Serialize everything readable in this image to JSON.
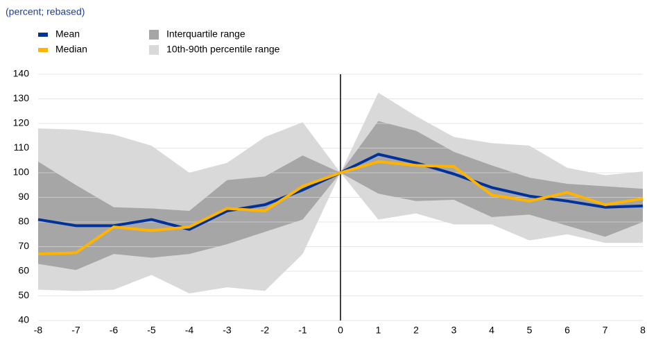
{
  "chart_data": {
    "type": "line",
    "subtitle": "(percent; rebased)",
    "x": [
      -8,
      -7,
      -6,
      -5,
      -4,
      -3,
      -2,
      -1,
      0,
      1,
      2,
      3,
      4,
      5,
      6,
      7,
      8
    ],
    "xlim": [
      -8,
      8
    ],
    "xticks": [
      -8,
      -7,
      -6,
      -5,
      -4,
      -3,
      -2,
      -1,
      0,
      1,
      2,
      3,
      4,
      5,
      6,
      7,
      8
    ],
    "ylim": [
      40,
      140
    ],
    "yticks": [
      40,
      50,
      60,
      70,
      80,
      90,
      100,
      110,
      120,
      130,
      140
    ],
    "grid": true,
    "vline_x": 0,
    "bands": [
      {
        "name": "10th-90th percentile range",
        "color": "#d9d9d9",
        "upper": [
          118,
          117.5,
          115.5,
          111,
          100,
          104,
          114.5,
          120.5,
          100,
          132.5,
          123,
          114.5,
          112,
          111,
          102,
          99,
          100.5
        ],
        "lower": [
          52.5,
          52,
          52.5,
          58.5,
          51,
          53.5,
          52,
          67,
          100,
          81,
          83.5,
          79,
          79,
          72.5,
          75,
          71.5,
          71.5
        ]
      },
      {
        "name": "Interquartile range",
        "color": "#a6a6a6",
        "upper": [
          104.5,
          95,
          86,
          85.5,
          84.5,
          97,
          98.5,
          107,
          100,
          121,
          117,
          108.5,
          103,
          98,
          95.5,
          94.5,
          93.5
        ],
        "lower": [
          63,
          60.5,
          67,
          65.5,
          67,
          71,
          76,
          81,
          100,
          91.5,
          88.5,
          89,
          82,
          83,
          78.5,
          74,
          80
        ]
      }
    ],
    "series": [
      {
        "name": "Mean",
        "color": "#003299",
        "values": [
          81,
          78.5,
          78.5,
          81,
          77,
          84.5,
          87,
          93,
          100,
          107.5,
          104,
          99.5,
          94,
          90.5,
          88.5,
          86,
          86.5
        ]
      },
      {
        "name": "Median",
        "color": "#ffb400",
        "values": [
          67,
          67.5,
          78,
          76.5,
          78,
          85.5,
          84.5,
          94.5,
          100,
          104.5,
          103,
          102.5,
          91,
          88.5,
          92,
          87,
          89.5
        ]
      }
    ]
  }
}
